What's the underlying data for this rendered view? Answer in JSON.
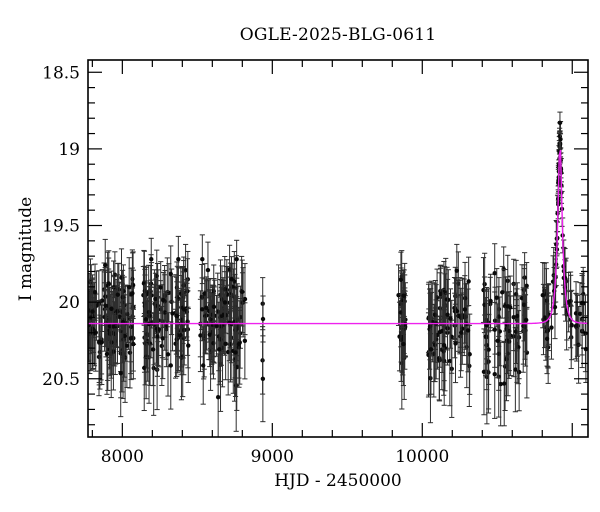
{
  "chart_data": {
    "type": "scatter",
    "title": "OGLE-2025-BLG-0611",
    "xlabel": "HJD - 2450000",
    "ylabel": "I magnitude",
    "xlim": [
      7771,
      11105
    ],
    "ylim_mag": [
      18.42,
      20.88
    ],
    "y_inverted": true,
    "grid": false,
    "x_major_ticks": [
      8000,
      9000,
      10000,
      11000
    ],
    "x_major_labels": [
      "8000",
      "9000",
      "10000",
      ""
    ],
    "x_minor_step": 200,
    "y_major_ticks": [
      18.5,
      19.0,
      19.5,
      20.0,
      20.5
    ],
    "y_major_labels": [
      "18.5",
      "19",
      "19.5",
      "20",
      "20.5"
    ],
    "y_minor_step": 0.1,
    "point_color": "#0a0a0a",
    "errorbar_color": "#2e2e2e",
    "frame_color": "#000000",
    "model_curve": {
      "type": "pspl-microlensing",
      "color": "#ee22ee",
      "baseline_mag": 20.14,
      "peak_mag": 18.95,
      "t0": 10918,
      "tE": 30,
      "u0": 0.35
    },
    "seasons": [
      {
        "name": "season-1",
        "t_range": [
          7771,
          8075
        ],
        "n": 110,
        "mean_mag": 20.13,
        "sigma": 0.16
      },
      {
        "name": "season-2",
        "t_range": [
          8140,
          8440
        ],
        "n": 100,
        "mean_mag": 20.12,
        "sigma": 0.16
      },
      {
        "name": "season-3",
        "t_range": [
          8520,
          8820
        ],
        "n": 100,
        "mean_mag": 20.13,
        "sigma": 0.16
      },
      {
        "name": "season-4",
        "t_range": [
          9838,
          9890
        ],
        "n": 28,
        "mean_mag": 20.12,
        "sigma": 0.15
      },
      {
        "name": "season-5",
        "t_range": [
          10040,
          10320
        ],
        "n": 75,
        "mean_mag": 20.13,
        "sigma": 0.16
      },
      {
        "name": "season-6",
        "t_range": [
          10405,
          10705
        ],
        "n": 70,
        "mean_mag": 20.14,
        "sigma": 0.16
      }
    ],
    "isolated_points": [
      {
        "t": 8936,
        "mag": 20.01,
        "err": 0.17
      },
      {
        "t": 8938,
        "mag": 20.11,
        "err": 0.15
      },
      {
        "t": 8935,
        "mag": 20.38,
        "err": 0.22
      },
      {
        "t": 8937,
        "mag": 20.5,
        "err": 0.28
      }
    ],
    "peak_season": {
      "name": "season-7",
      "t_range": [
        10790,
        11100
      ],
      "n_baseline": 55,
      "n_near_peak": 35,
      "near_peak_sigma_days": 18,
      "mag_noise": 0.09
    },
    "highlight_points": [
      {
        "t": 10918,
        "mag": 18.83,
        "err": 0.07
      }
    ]
  }
}
